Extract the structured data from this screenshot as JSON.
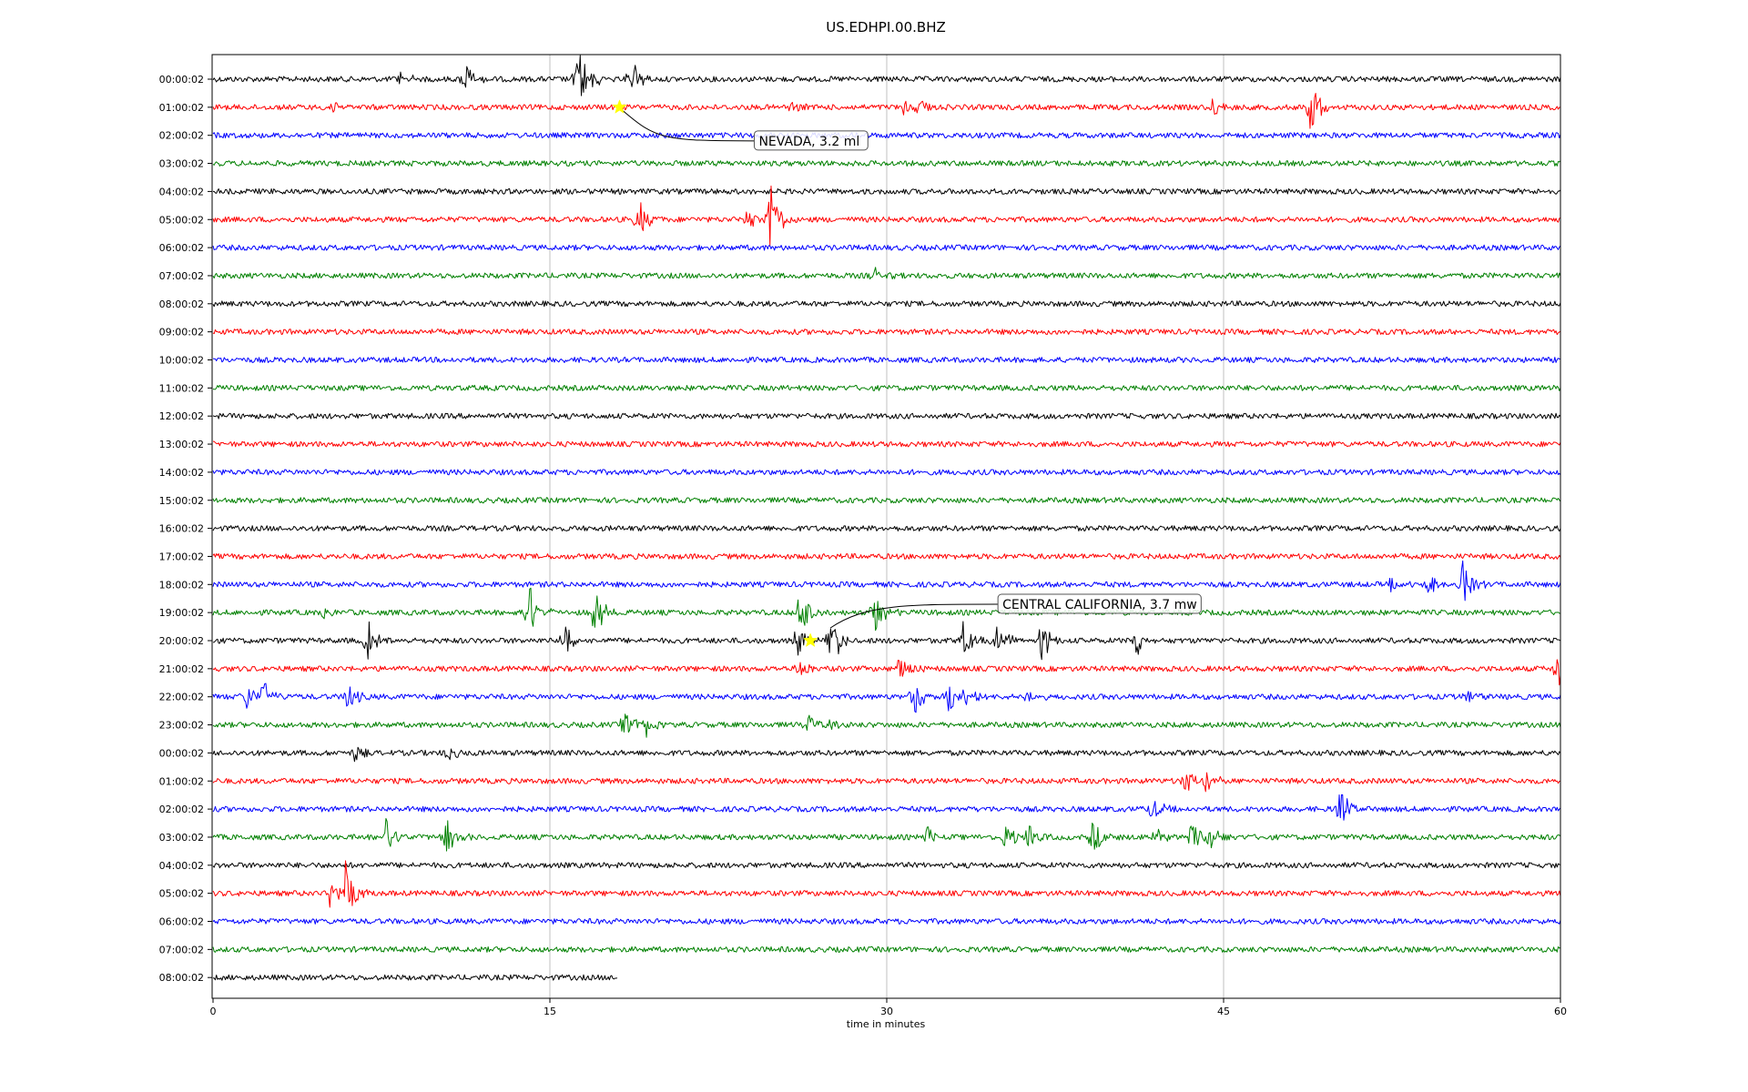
{
  "chart_data": {
    "type": "line",
    "title": "US.EDHPI.00.BHZ",
    "xlabel": "time in minutes",
    "ylabel": "",
    "xlim": [
      0,
      60
    ],
    "x_ticks": [
      0,
      15,
      30,
      45,
      60
    ],
    "grid": "vertical gridlines at x ticks",
    "color_cycle": [
      "#000000",
      "#ff0000",
      "#0000ff",
      "#008000"
    ],
    "row_labels": [
      "00:00:02",
      "01:00:02",
      "02:00:02",
      "03:00:02",
      "04:00:02",
      "05:00:02",
      "06:00:02",
      "07:00:02",
      "08:00:02",
      "09:00:02",
      "10:00:02",
      "11:00:02",
      "12:00:02",
      "13:00:02",
      "14:00:02",
      "15:00:02",
      "16:00:02",
      "17:00:02",
      "18:00:02",
      "19:00:02",
      "20:00:02",
      "21:00:02",
      "22:00:02",
      "23:00:02",
      "00:00:02",
      "01:00:02",
      "02:00:02",
      "03:00:02",
      "04:00:02",
      "05:00:02",
      "06:00:02",
      "07:00:02",
      "08:00:02"
    ],
    "last_row_end_minute": 18,
    "noise_amplitude": 3,
    "bursts": [
      {
        "row": 0,
        "t": 8.4,
        "amp": 7
      },
      {
        "row": 0,
        "t": 11.3,
        "amp": 11
      },
      {
        "row": 0,
        "t": 16.3,
        "amp": 22
      },
      {
        "row": 0,
        "t": 17.0,
        "amp": 5
      },
      {
        "row": 0,
        "t": 18.7,
        "amp": 14
      },
      {
        "row": 1,
        "t": 5.2,
        "amp": 5
      },
      {
        "row": 1,
        "t": 25.8,
        "amp": 6
      },
      {
        "row": 1,
        "t": 30.8,
        "amp": 7
      },
      {
        "row": 1,
        "t": 31.5,
        "amp": 6
      },
      {
        "row": 1,
        "t": 44.6,
        "amp": 9
      },
      {
        "row": 1,
        "t": 48.9,
        "amp": 22
      },
      {
        "row": 5,
        "t": 19.0,
        "amp": 15
      },
      {
        "row": 5,
        "t": 23.8,
        "amp": 8
      },
      {
        "row": 5,
        "t": 24.8,
        "amp": 30
      },
      {
        "row": 7,
        "t": 29.5,
        "amp": 5
      },
      {
        "row": 18,
        "t": 52.5,
        "amp": 6
      },
      {
        "row": 18,
        "t": 54.2,
        "amp": 8
      },
      {
        "row": 18,
        "t": 55.6,
        "amp": 20
      },
      {
        "row": 19,
        "t": 5.0,
        "amp": 4
      },
      {
        "row": 19,
        "t": 14.1,
        "amp": 20
      },
      {
        "row": 19,
        "t": 17.0,
        "amp": 18
      },
      {
        "row": 19,
        "t": 26.2,
        "amp": 20
      },
      {
        "row": 19,
        "t": 29.5,
        "amp": 14
      },
      {
        "row": 20,
        "t": 6.9,
        "amp": 14
      },
      {
        "row": 20,
        "t": 15.7,
        "amp": 14
      },
      {
        "row": 20,
        "t": 26.0,
        "amp": 12
      },
      {
        "row": 20,
        "t": 27.6,
        "amp": 18
      },
      {
        "row": 20,
        "t": 33.4,
        "amp": 14
      },
      {
        "row": 20,
        "t": 34.9,
        "amp": 14
      },
      {
        "row": 20,
        "t": 36.9,
        "amp": 14
      },
      {
        "row": 20,
        "t": 41.1,
        "amp": 12
      },
      {
        "row": 21,
        "t": 26.2,
        "amp": 8
      },
      {
        "row": 21,
        "t": 30.6,
        "amp": 14
      },
      {
        "row": 21,
        "t": 59.9,
        "amp": 14
      },
      {
        "row": 22,
        "t": 1.5,
        "amp": 10
      },
      {
        "row": 22,
        "t": 2.3,
        "amp": 10
      },
      {
        "row": 22,
        "t": 6.0,
        "amp": 10
      },
      {
        "row": 22,
        "t": 31.3,
        "amp": 14
      },
      {
        "row": 22,
        "t": 32.8,
        "amp": 16
      },
      {
        "row": 22,
        "t": 33.5,
        "amp": 10
      },
      {
        "row": 22,
        "t": 36.2,
        "amp": 8
      },
      {
        "row": 22,
        "t": 55.9,
        "amp": 5
      },
      {
        "row": 23,
        "t": 18.4,
        "amp": 12
      },
      {
        "row": 23,
        "t": 19.2,
        "amp": 10
      },
      {
        "row": 23,
        "t": 26.5,
        "amp": 8
      },
      {
        "row": 23,
        "t": 27.5,
        "amp": 6
      },
      {
        "row": 24,
        "t": 6.3,
        "amp": 6
      },
      {
        "row": 24,
        "t": 10.5,
        "amp": 6
      },
      {
        "row": 25,
        "t": 43.3,
        "amp": 10
      },
      {
        "row": 25,
        "t": 44.2,
        "amp": 10
      },
      {
        "row": 26,
        "t": 41.8,
        "amp": 10
      },
      {
        "row": 26,
        "t": 50.2,
        "amp": 14
      },
      {
        "row": 27,
        "t": 7.7,
        "amp": 14
      },
      {
        "row": 27,
        "t": 10.4,
        "amp": 14
      },
      {
        "row": 27,
        "t": 31.8,
        "amp": 10
      },
      {
        "row": 27,
        "t": 35.3,
        "amp": 10
      },
      {
        "row": 27,
        "t": 36.3,
        "amp": 10
      },
      {
        "row": 27,
        "t": 39.2,
        "amp": 12
      },
      {
        "row": 27,
        "t": 42.0,
        "amp": 10
      },
      {
        "row": 27,
        "t": 43.6,
        "amp": 10
      },
      {
        "row": 27,
        "t": 44.4,
        "amp": 12
      },
      {
        "row": 29,
        "t": 5.2,
        "amp": 10
      },
      {
        "row": 29,
        "t": 5.9,
        "amp": 22
      }
    ],
    "events": [
      {
        "label": "NEVADA, 3.2 ml",
        "row": 1,
        "t": 18.1
      },
      {
        "label": "CENTRAL CALIFORNIA, 3.7 mw",
        "row": 20,
        "t": 26.6
      }
    ]
  }
}
